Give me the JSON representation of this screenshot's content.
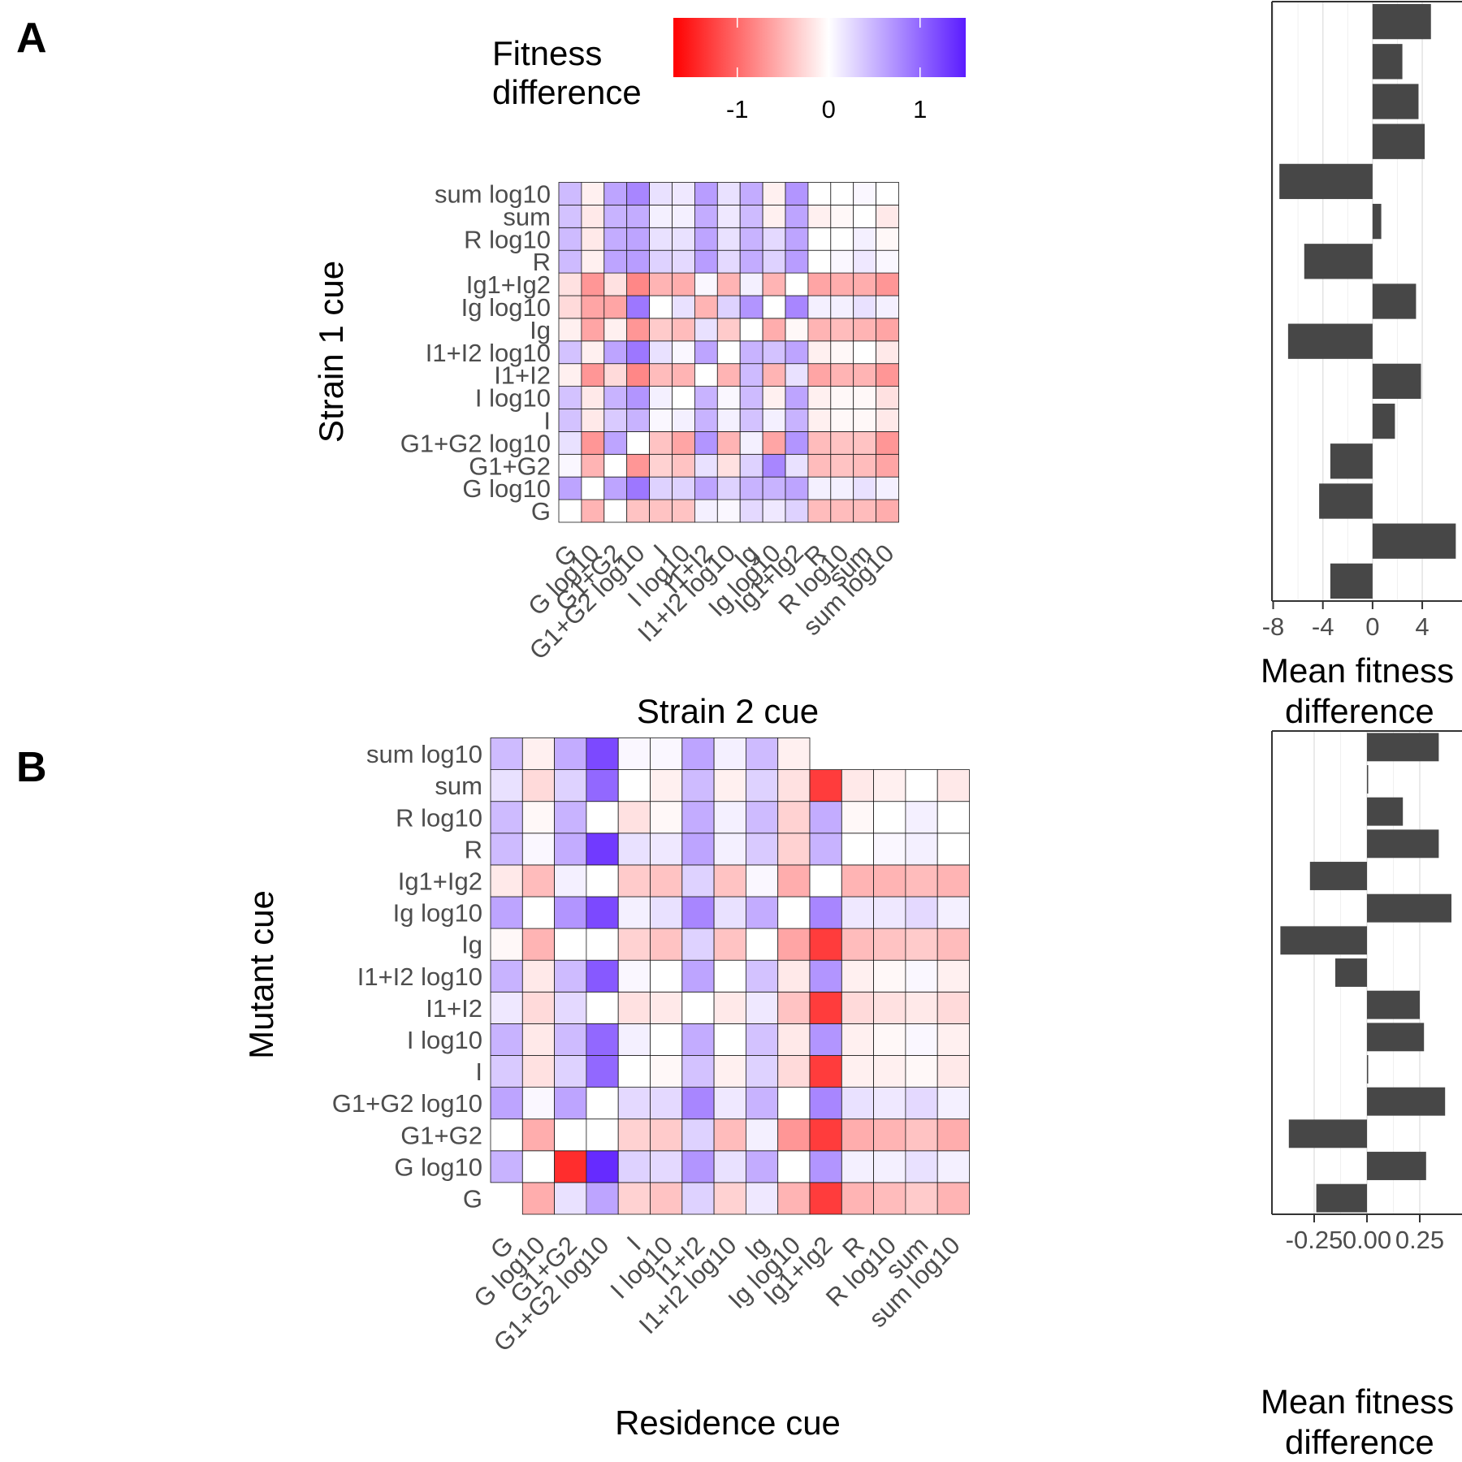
{
  "panels": [
    {
      "letter": "A",
      "y_title": "Strain 1 cue",
      "x_title": "Strain 2 cue",
      "bar_title": [
        "Mean fitness",
        "difference"
      ]
    },
    {
      "letter": "B",
      "y_title": "Mutant cue",
      "x_title": "Residence cue",
      "bar_title": [
        "Mean fitness",
        "difference"
      ]
    }
  ],
  "legend": {
    "title": [
      "Fitness",
      "difference"
    ],
    "ticks": [
      {
        "label": "-1",
        "value": -1
      },
      {
        "label": "0",
        "value": 0
      },
      {
        "label": "1",
        "value": 1
      }
    ],
    "range": [
      -1.7,
      1.5
    ],
    "low_color": "#ff0000",
    "mid_color": "#ffffff",
    "high_color": "#5b1cff"
  },
  "chart_data": [
    {
      "type": "heatmap",
      "panel": "A",
      "xlabel": "Strain 2 cue",
      "ylabel": "Strain 1 cue",
      "categories": [
        "G",
        "G log10",
        "G1+G2",
        "G1+G2 log10",
        "I",
        "I log10",
        "I1+I2",
        "I1+I2 log10",
        "Ig",
        "Ig log10",
        "Ig1+Ig2",
        "R",
        "R log10",
        "sum",
        "sum log10"
      ],
      "rows": [
        "G",
        "G log10",
        "G1+G2",
        "G1+G2 log10",
        "I",
        "I log10",
        "I1+I2",
        "I1+I2 log10",
        "Ig",
        "Ig log10",
        "Ig1+Ig2",
        "R",
        "R log10",
        "sum",
        "sum log10"
      ],
      "values": [
        [
          0.0,
          -0.5,
          0.0,
          -0.4,
          -0.4,
          -0.4,
          0.1,
          0.05,
          0.25,
          0.15,
          0.3,
          -0.45,
          -0.45,
          -0.45,
          -0.55
        ],
        [
          0.6,
          0.0,
          0.6,
          0.9,
          0.3,
          0.3,
          0.6,
          0.3,
          0.5,
          0.5,
          0.6,
          0.1,
          0.1,
          0.2,
          0.1
        ],
        [
          0.05,
          -0.5,
          0.0,
          -0.7,
          -0.3,
          -0.4,
          0.2,
          -0.2,
          0.3,
          0.8,
          0.2,
          -0.45,
          -0.4,
          -0.45,
          -0.6
        ],
        [
          0.2,
          -0.7,
          0.6,
          0.0,
          -0.4,
          -0.6,
          0.7,
          -0.5,
          0.1,
          -0.6,
          0.7,
          -0.45,
          -0.4,
          -0.4,
          -0.7
        ],
        [
          0.4,
          -0.15,
          0.35,
          0.5,
          0.05,
          0.1,
          0.5,
          0.1,
          0.4,
          0.1,
          0.5,
          -0.1,
          -0.05,
          -0.05,
          -0.15
        ],
        [
          0.4,
          -0.15,
          0.5,
          0.7,
          0.1,
          0.0,
          0.5,
          0.05,
          0.45,
          -0.1,
          0.6,
          -0.1,
          -0.05,
          -0.05,
          -0.2
        ],
        [
          -0.1,
          -0.7,
          -0.25,
          -0.8,
          -0.45,
          -0.5,
          0.0,
          -0.5,
          0.45,
          -0.5,
          0.2,
          -0.6,
          -0.5,
          -0.5,
          -0.7
        ],
        [
          0.4,
          -0.1,
          0.6,
          0.9,
          0.2,
          0.05,
          0.6,
          0.0,
          0.5,
          0.4,
          0.6,
          -0.1,
          -0.05,
          0.0,
          -0.15
        ],
        [
          -0.1,
          -0.6,
          -0.1,
          -0.7,
          -0.35,
          -0.45,
          0.2,
          -0.35,
          0.0,
          -0.55,
          -0.05,
          -0.5,
          -0.45,
          -0.5,
          -0.6
        ],
        [
          -0.25,
          -0.6,
          -0.6,
          0.9,
          0.0,
          0.2,
          -0.5,
          0.3,
          0.7,
          0.0,
          0.8,
          0.1,
          0.1,
          0.2,
          0.1
        ],
        [
          -0.2,
          -0.7,
          -0.2,
          -0.8,
          -0.5,
          -0.55,
          0.05,
          -0.5,
          0.1,
          -0.5,
          0.0,
          -0.6,
          -0.55,
          -0.55,
          -0.7
        ],
        [
          0.45,
          -0.1,
          0.6,
          0.65,
          0.3,
          0.25,
          0.65,
          0.25,
          0.55,
          0.3,
          0.65,
          0.0,
          0.05,
          0.15,
          0.05
        ],
        [
          0.45,
          -0.15,
          0.55,
          0.6,
          0.2,
          0.2,
          0.6,
          0.2,
          0.5,
          0.25,
          0.6,
          0.0,
          0.0,
          0.1,
          -0.05
        ],
        [
          0.4,
          -0.15,
          0.5,
          0.55,
          0.1,
          0.1,
          0.55,
          0.15,
          0.45,
          -0.1,
          0.6,
          -0.1,
          -0.05,
          0.0,
          -0.15
        ],
        [
          0.45,
          -0.1,
          0.6,
          0.8,
          0.2,
          0.15,
          0.65,
          0.2,
          0.55,
          -0.1,
          0.7,
          0.0,
          0.0,
          0.05,
          0.0
        ]
      ]
    },
    {
      "type": "bar",
      "panel": "A",
      "orientation": "horizontal",
      "xlabel": "Mean fitness difference",
      "categories": [
        "G",
        "G log10",
        "G1+G2",
        "G1+G2 log10",
        "I",
        "I log10",
        "I1+I2",
        "I1+I2 log10",
        "Ig",
        "Ig log10",
        "Ig1+Ig2",
        "R",
        "R log10",
        "sum",
        "sum log10"
      ],
      "values": [
        -3.4,
        6.7,
        -4.3,
        -3.4,
        1.8,
        3.9,
        -6.8,
        3.5,
        -5.5,
        0.7,
        -7.5,
        4.2,
        3.7,
        2.4,
        4.7
      ],
      "xlim": [
        -8.1,
        7.2
      ],
      "ticks": [
        -8,
        -4,
        0,
        4
      ],
      "grid": true
    },
    {
      "type": "heatmap",
      "panel": "B",
      "xlabel": "Residence cue",
      "ylabel": "Mutant cue",
      "categories": [
        "G",
        "G log10",
        "G1+G2",
        "G1+G2 log10",
        "I",
        "I log10",
        "I1+I2",
        "I1+I2 log10",
        "Ig",
        "Ig log10",
        "Ig1+Ig2",
        "R",
        "R log10",
        "sum",
        "sum log10"
      ],
      "rows": [
        "G",
        "G log10",
        "G1+G2",
        "G1+G2 log10",
        "I",
        "I log10",
        "I1+I2",
        "I1+I2 log10",
        "Ig",
        "Ig log10",
        "Ig1+Ig2",
        "R",
        "R log10",
        "sum",
        "sum log10"
      ],
      "values": [
        [
          null,
          -0.55,
          0.2,
          0.6,
          -0.3,
          -0.4,
          0.3,
          -0.3,
          0.15,
          -0.5,
          -1.3,
          -0.5,
          -0.45,
          -0.35,
          -0.5
        ],
        [
          0.5,
          0.0,
          -1.4,
          1.4,
          0.3,
          0.25,
          0.7,
          0.2,
          0.55,
          0.0,
          0.7,
          0.1,
          0.1,
          0.2,
          0.1
        ],
        [
          0.0,
          -0.55,
          0.0,
          0.0,
          -0.3,
          -0.35,
          0.3,
          -0.45,
          0.1,
          -0.7,
          -1.3,
          -0.55,
          -0.5,
          -0.4,
          -0.55
        ],
        [
          0.6,
          0.05,
          0.6,
          0.0,
          0.25,
          0.25,
          0.8,
          0.15,
          0.5,
          0.0,
          0.8,
          0.2,
          0.15,
          0.25,
          0.1
        ],
        [
          0.35,
          -0.2,
          0.3,
          1.0,
          0.0,
          -0.05,
          0.4,
          -0.1,
          0.3,
          -0.25,
          -1.3,
          -0.1,
          -0.1,
          -0.05,
          -0.15
        ],
        [
          0.5,
          -0.15,
          0.45,
          1.0,
          0.1,
          0.0,
          0.55,
          0.0,
          0.4,
          -0.15,
          0.7,
          -0.1,
          -0.05,
          0.05,
          -0.1
        ],
        [
          0.15,
          -0.25,
          0.25,
          0.0,
          -0.2,
          -0.15,
          0.0,
          -0.15,
          0.15,
          -0.4,
          -1.3,
          -0.25,
          -0.2,
          -0.15,
          -0.25
        ],
        [
          0.5,
          -0.15,
          0.45,
          1.1,
          0.05,
          0.0,
          0.6,
          0.0,
          0.4,
          -0.15,
          0.7,
          -0.1,
          -0.05,
          0.05,
          -0.1
        ],
        [
          -0.05,
          -0.5,
          0.0,
          0.0,
          -0.3,
          -0.4,
          0.3,
          -0.4,
          0.0,
          -0.6,
          -1.3,
          -0.45,
          -0.4,
          -0.35,
          -0.45
        ],
        [
          0.6,
          0.0,
          0.7,
          1.2,
          0.1,
          0.2,
          0.8,
          0.2,
          0.55,
          0.0,
          0.8,
          0.15,
          0.15,
          0.25,
          0.1
        ],
        [
          -0.15,
          -0.45,
          0.1,
          0.0,
          -0.35,
          -0.4,
          0.3,
          -0.4,
          0.05,
          -0.55,
          0.0,
          -0.5,
          -0.5,
          -0.45,
          -0.5
        ],
        [
          0.45,
          0.05,
          0.55,
          1.3,
          0.2,
          0.15,
          0.6,
          0.1,
          0.35,
          -0.3,
          0.5,
          0.0,
          0.05,
          0.1,
          0.0
        ],
        [
          0.45,
          -0.05,
          0.5,
          0.0,
          -0.2,
          -0.05,
          0.55,
          0.1,
          0.45,
          -0.3,
          0.55,
          -0.05,
          0.0,
          0.1,
          0.0
        ],
        [
          0.2,
          -0.25,
          0.3,
          1.0,
          0.0,
          -0.1,
          0.45,
          -0.1,
          0.3,
          -0.2,
          -1.3,
          -0.15,
          -0.1,
          0.0,
          -0.15
        ],
        [
          0.45,
          -0.1,
          0.55,
          1.2,
          0.05,
          0.05,
          0.6,
          0.1,
          0.45,
          -0.1,
          null,
          null,
          null,
          null,
          null
        ]
      ]
    },
    {
      "type": "bar",
      "panel": "B",
      "orientation": "horizontal",
      "xlabel": "Mean fitness difference",
      "categories": [
        "G",
        "G log10",
        "G1+G2",
        "G1+G2 log10",
        "I",
        "I log10",
        "I1+I2",
        "I1+I2 log10",
        "Ig",
        "Ig log10",
        "Ig1+Ig2",
        "R",
        "R log10",
        "sum",
        "sum log10"
      ],
      "values": [
        -0.24,
        0.28,
        -0.37,
        0.37,
        0.0,
        0.27,
        0.25,
        -0.15,
        -0.41,
        0.4,
        -0.27,
        0.34,
        0.17,
        0.0,
        0.34
      ],
      "xlim": [
        -0.45,
        0.45
      ],
      "ticks": [
        -0.25,
        0.0,
        0.25
      ],
      "tick_labels": [
        "-0.25",
        "0.00",
        "0.25"
      ],
      "grid": true
    }
  ]
}
